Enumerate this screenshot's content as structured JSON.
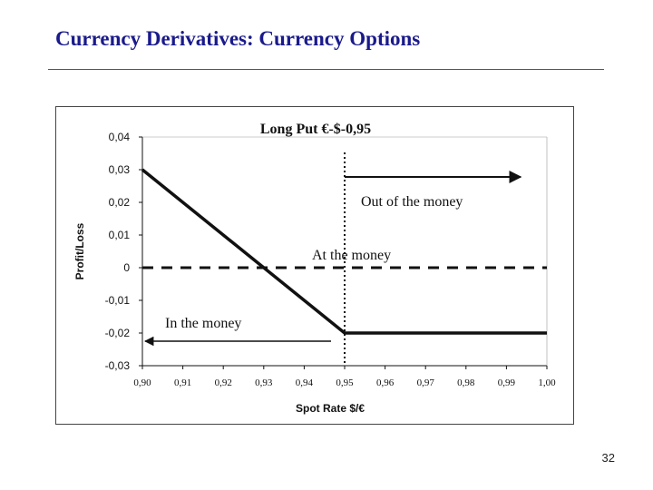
{
  "slide": {
    "title": "Currency Derivatives: Currency Options",
    "page_number": "32"
  },
  "chart_data": {
    "type": "line",
    "title": "Long Put €-$-0,95",
    "xlabel": "Spot Rate $/€",
    "ylabel": "Profit/Loss",
    "x_tick_labels": [
      "0,90",
      "0,91",
      "0,92",
      "0,93",
      "0,94",
      "0,95",
      "0,96",
      "0,97",
      "0,98",
      "0,99",
      "1,00"
    ],
    "x_ticks": [
      0.9,
      0.91,
      0.92,
      0.93,
      0.94,
      0.95,
      0.96,
      0.97,
      0.98,
      0.99,
      1.0
    ],
    "y_tick_labels": [
      "0,04",
      "0,03",
      "0,02",
      "0,01",
      "0",
      "-0,01",
      "-0,02",
      "-0,03"
    ],
    "y_ticks": [
      0.04,
      0.03,
      0.02,
      0.01,
      0,
      -0.01,
      -0.02,
      -0.03
    ],
    "xlim": [
      0.9,
      1.0
    ],
    "ylim": [
      -0.03,
      0.04
    ],
    "grid": false,
    "series": [
      {
        "x": [
          0.9,
          0.95,
          1.0
        ],
        "y": [
          0.03,
          -0.02,
          -0.02
        ]
      }
    ],
    "reference_lines": {
      "zero_line_y": 0,
      "strike_x": 0.95
    },
    "annotations": {
      "out_of_money": "Out of the money",
      "at_money": "At the money",
      "in_money": "In the money"
    }
  }
}
